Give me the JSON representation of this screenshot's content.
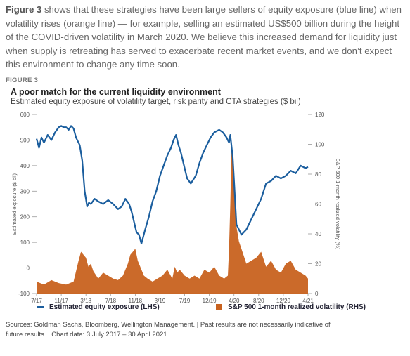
{
  "intro": {
    "lead": "Figure 3",
    "text": " shows that these strategies have been large sellers of equity exposure (blue line) when volatility rises (orange line) — for example, selling an estimated US$500 billion during the height of the COVID-driven volatility in March 2020. We believe this increased demand for liquidity just when supply is retreating has served to exacerbate recent market events, and we don’t expect this environment to change any time soon."
  },
  "figure_label": "FIGURE 3",
  "colors": {
    "blue": "#1b5e9e",
    "orange": "#c8621f",
    "axis": "#999999"
  },
  "chart_data": {
    "type": "line",
    "title": "A poor match for the current liquidity environment",
    "subtitle": "Estimated equity exposure of volatility target, risk parity and CTA strategies ($ bil)",
    "ylabel": "Estimated exposure ($ bil)",
    "y2label": "S&P 500 1-month realized volatility (%)",
    "ylim": [
      -100,
      600
    ],
    "y2lim": [
      0,
      120
    ],
    "yticks": [
      "600",
      "500",
      "400",
      "300",
      "200",
      "100",
      "0",
      "-100"
    ],
    "y2ticks": [
      "120",
      "100",
      "80",
      "60",
      "40",
      "20",
      "0"
    ],
    "xticks": [
      "7/17",
      "11/17",
      "3/18",
      "7/18",
      "11/18",
      "3/19",
      "7/19",
      "12/19",
      "4/20",
      "8/20",
      "12/20",
      "4/21"
    ],
    "xlim": [
      0,
      11
    ],
    "series": [
      {
        "name": "Estimated equity exposure (LHS)",
        "axis": "left",
        "kind": "line",
        "x": [
          0,
          0.1,
          0.2,
          0.3,
          0.45,
          0.6,
          0.75,
          0.9,
          1.0,
          1.1,
          1.2,
          1.3,
          1.4,
          1.5,
          1.6,
          1.75,
          1.85,
          1.95,
          2.05,
          2.12,
          2.2,
          2.35,
          2.5,
          2.7,
          2.9,
          3.1,
          3.3,
          3.45,
          3.6,
          3.75,
          3.85,
          3.95,
          4.05,
          4.15,
          4.25,
          4.4,
          4.55,
          4.7,
          4.85,
          5.0,
          5.15,
          5.3,
          5.45,
          5.55,
          5.65,
          5.75,
          5.85,
          5.95,
          6.1,
          6.25,
          6.45,
          6.6,
          6.75,
          6.9,
          7.05,
          7.2,
          7.4,
          7.55,
          7.7,
          7.8,
          7.85,
          7.95,
          8.1,
          8.3,
          8.5,
          8.7,
          8.9,
          9.1,
          9.3,
          9.5,
          9.7,
          9.9,
          10.1,
          10.3,
          10.5,
          10.7,
          10.9,
          11.0
        ],
        "y": [
          505,
          470,
          510,
          490,
          520,
          500,
          530,
          550,
          555,
          550,
          550,
          540,
          555,
          545,
          510,
          480,
          420,
          300,
          240,
          255,
          250,
          270,
          260,
          250,
          265,
          250,
          230,
          240,
          270,
          250,
          220,
          180,
          140,
          130,
          95,
          150,
          200,
          260,
          300,
          360,
          400,
          440,
          470,
          500,
          520,
          480,
          450,
          410,
          350,
          330,
          360,
          410,
          450,
          480,
          510,
          530,
          540,
          530,
          510,
          490,
          520,
          430,
          170,
          130,
          150,
          190,
          230,
          270,
          330,
          340,
          360,
          350,
          360,
          380,
          370,
          400,
          390,
          395
        ]
      },
      {
        "name": "S&P 500 1-month realized volatility (RHS)",
        "axis": "right",
        "kind": "area",
        "x": [
          0,
          0.3,
          0.6,
          0.9,
          1.2,
          1.5,
          1.7,
          1.8,
          1.9,
          2.0,
          2.1,
          2.2,
          2.3,
          2.5,
          2.7,
          2.9,
          3.1,
          3.3,
          3.5,
          3.7,
          3.8,
          3.9,
          4.0,
          4.1,
          4.2,
          4.35,
          4.5,
          4.7,
          4.9,
          5.1,
          5.3,
          5.5,
          5.6,
          5.7,
          5.8,
          6.0,
          6.2,
          6.4,
          6.6,
          6.8,
          7.0,
          7.2,
          7.4,
          7.6,
          7.75,
          7.8,
          7.85,
          7.9,
          7.95,
          8.0,
          8.05,
          8.1,
          8.2,
          8.3,
          8.5,
          8.7,
          8.9,
          9.1,
          9.3,
          9.5,
          9.7,
          9.9,
          10.1,
          10.3,
          10.5,
          10.7,
          10.9,
          11.0
        ],
        "y": [
          8,
          6,
          9,
          7,
          6,
          8,
          22,
          28,
          26,
          24,
          18,
          20,
          15,
          10,
          14,
          12,
          10,
          9,
          12,
          20,
          26,
          28,
          30,
          22,
          18,
          12,
          10,
          8,
          10,
          12,
          16,
          10,
          18,
          14,
          16,
          12,
          10,
          12,
          10,
          16,
          14,
          18,
          12,
          10,
          12,
          30,
          60,
          96,
          95,
          70,
          55,
          45,
          35,
          30,
          20,
          22,
          24,
          28,
          18,
          22,
          16,
          14,
          20,
          22,
          16,
          14,
          12,
          10
        ]
      }
    ],
    "legend_position": "bottom"
  },
  "sources": {
    "line1": "Sources: Goldman Sachs, Bloomberg, Wellington Management.  |  Past results are not necessarily indicative of",
    "line2": "future results.  |  Chart data: 3 July 2017 – 30 April 2021"
  }
}
